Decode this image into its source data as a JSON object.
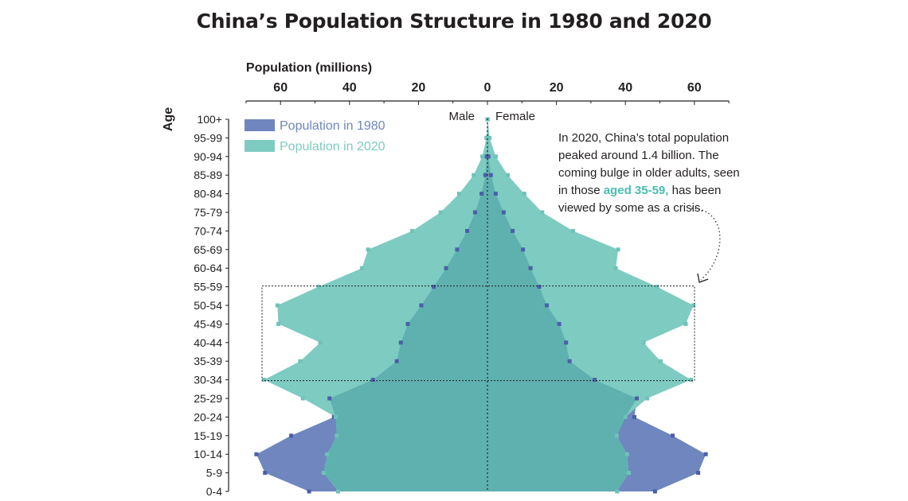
{
  "title": "China’s Population Structure in 1980 and 2020",
  "colors": {
    "pop1980": "#6f86bf",
    "pop2020": "#7ecbc1",
    "overlap": "#5fb1b0",
    "highlight": "#48bdb0",
    "text": "#231f20"
  },
  "chart_data": {
    "type": "area",
    "subtype": "population-pyramid",
    "xlabel": "Population (millions)",
    "ylabel": "Age",
    "xlim": [
      -70,
      70
    ],
    "xticks": [
      -60,
      -40,
      -20,
      0,
      20,
      40,
      60
    ],
    "xtick_labels": [
      "60",
      "40",
      "20",
      "0",
      "20",
      "40",
      "60"
    ],
    "male_label": "Male",
    "female_label": "Female",
    "categories": [
      "0-4",
      "5-9",
      "10-14",
      "15-19",
      "20-24",
      "25-29",
      "30-34",
      "35-39",
      "40-44",
      "45-49",
      "50-54",
      "55-59",
      "60-64",
      "65-69",
      "70-74",
      "75-79",
      "80-84",
      "85-89",
      "90-94",
      "95-99",
      "100+"
    ],
    "series": [
      {
        "name": "Population in 1980",
        "male": [
          51.7,
          64.5,
          67.0,
          56.9,
          44.5,
          45.8,
          33.2,
          26.3,
          25.1,
          23.1,
          19.2,
          15.6,
          12.0,
          8.8,
          5.9,
          3.6,
          1.7,
          0.6,
          0.2,
          0.05,
          0.01
        ],
        "female": [
          48.6,
          61.1,
          63.3,
          53.7,
          42.6,
          43.3,
          31.1,
          23.8,
          22.8,
          20.8,
          17.2,
          15.0,
          12.5,
          10.3,
          7.3,
          4.7,
          2.4,
          1.0,
          0.3,
          0.07,
          0.01
        ]
      },
      {
        "name": "Population in 2020",
        "male": [
          43.3,
          47.5,
          46.5,
          43.7,
          44.0,
          53.5,
          64.8,
          54.3,
          48.5,
          60.6,
          60.9,
          49.0,
          36.4,
          34.6,
          21.8,
          13.6,
          8.2,
          4.0,
          1.5,
          0.3,
          0.03
        ],
        "female": [
          37.6,
          41.0,
          40.5,
          37.5,
          40.0,
          46.3,
          59.0,
          50.2,
          45.3,
          57.5,
          59.7,
          49.2,
          37.2,
          37.9,
          24.8,
          15.9,
          10.7,
          5.9,
          2.4,
          0.6,
          0.08
        ]
      }
    ]
  },
  "annotation": {
    "line1": "In 2020, China’s total population",
    "line2": "peaked around 1.4 billion. The",
    "line3": "coming bulge in older adults, seen",
    "line4_pre": "in those ",
    "line4_highlight": "aged 35-59,",
    "line4_post": " has been",
    "line5": "viewed by some as a crisis."
  }
}
